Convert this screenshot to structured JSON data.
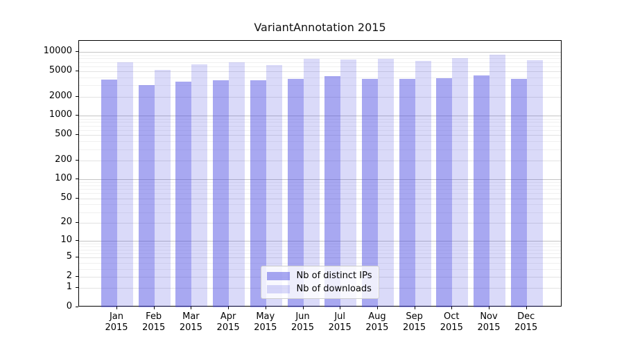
{
  "title": "VariantAnnotation 2015",
  "chart_data": {
    "type": "bar",
    "title": "VariantAnnotation 2015",
    "categories": [
      "Jan",
      "Feb",
      "Mar",
      "Apr",
      "May",
      "Jun",
      "Jul",
      "Aug",
      "Sep",
      "Oct",
      "Nov",
      "Dec"
    ],
    "year_label": "2015",
    "series": [
      {
        "name": "Nb of distinct IPs",
        "color": "#a8a8f0",
        "fill_rgba": "rgba(70,70,225,0.47)",
        "values": [
          3670,
          3010,
          3400,
          3630,
          3630,
          3820,
          4220,
          3820,
          3820,
          3890,
          4330,
          3760
        ]
      },
      {
        "name": "Nb of downloads",
        "color": "#d8d8f8",
        "fill_rgba": "rgba(70,70,225,0.20)",
        "values": [
          6950,
          5280,
          6400,
          6950,
          6190,
          7820,
          7670,
          7760,
          7260,
          8070,
          9140,
          7480
        ]
      }
    ],
    "y_ticks": [
      0,
      1,
      2,
      5,
      10,
      20,
      50,
      100,
      200,
      500,
      1000,
      2000,
      5000,
      10000
    ],
    "y_major_ticks": [
      10,
      100,
      1000,
      10000
    ],
    "y_scale": "log1p",
    "ylim": [
      0,
      15000
    ],
    "grid": "horizontal",
    "legend_position": "bottom-center",
    "colors": {
      "grid_major": "#c4c4c4",
      "grid_light": "#e2e2e2",
      "grid_minor": "#f0f0f0",
      "axis": "#000000"
    }
  }
}
